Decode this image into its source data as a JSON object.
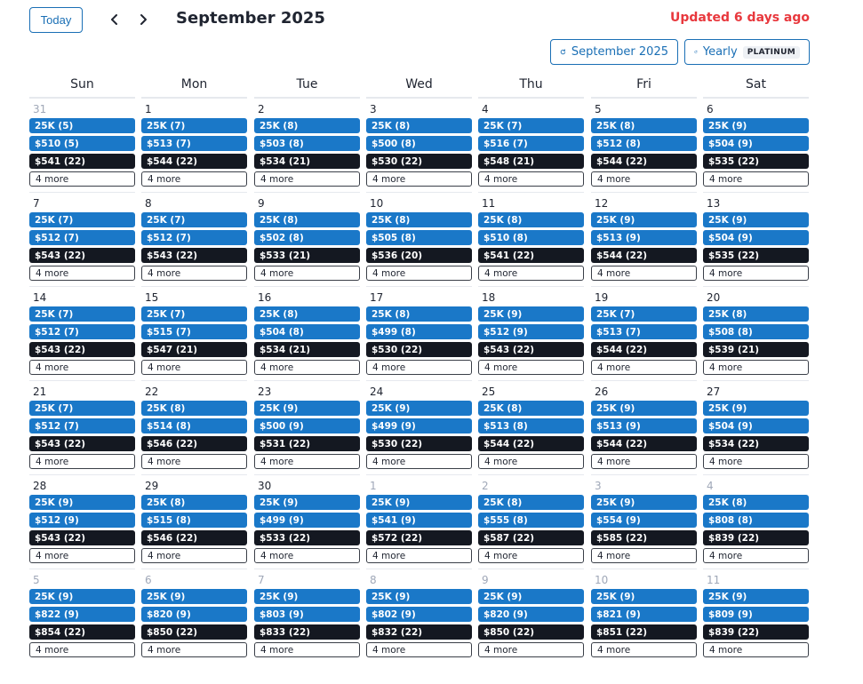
{
  "header": {
    "today_label": "Today",
    "month_title": "September 2025",
    "updated_text": "Updated 6 days ago",
    "month_filter_label": "September 2025",
    "yearly_filter_label": "Yearly",
    "plan_badge": "PLATINUM"
  },
  "colors": {
    "accent": "#1a78c8",
    "dark_event": "#141821",
    "alert": "#e8383d"
  },
  "weekdays": [
    "Sun",
    "Mon",
    "Tue",
    "Wed",
    "Thu",
    "Fri",
    "Sat"
  ],
  "more_label": "4 more",
  "weeks": [
    [
      {
        "day": "31",
        "muted": true,
        "events": [
          "25K (5)",
          "$510 (5)",
          "$541 (22)"
        ]
      },
      {
        "day": "1",
        "muted": false,
        "events": [
          "25K (7)",
          "$513 (7)",
          "$544 (22)"
        ]
      },
      {
        "day": "2",
        "muted": false,
        "events": [
          "25K (8)",
          "$503 (8)",
          "$534 (21)"
        ]
      },
      {
        "day": "3",
        "muted": false,
        "events": [
          "25K (8)",
          "$500 (8)",
          "$530 (22)"
        ]
      },
      {
        "day": "4",
        "muted": false,
        "events": [
          "25K (7)",
          "$516 (7)",
          "$548 (21)"
        ]
      },
      {
        "day": "5",
        "muted": false,
        "events": [
          "25K (8)",
          "$512 (8)",
          "$544 (22)"
        ]
      },
      {
        "day": "6",
        "muted": false,
        "events": [
          "25K (9)",
          "$504 (9)",
          "$535 (22)"
        ]
      }
    ],
    [
      {
        "day": "7",
        "muted": false,
        "events": [
          "25K (7)",
          "$512 (7)",
          "$543 (22)"
        ]
      },
      {
        "day": "8",
        "muted": false,
        "events": [
          "25K (7)",
          "$512 (7)",
          "$543 (22)"
        ]
      },
      {
        "day": "9",
        "muted": false,
        "events": [
          "25K (8)",
          "$502 (8)",
          "$533 (21)"
        ]
      },
      {
        "day": "10",
        "muted": false,
        "events": [
          "25K (8)",
          "$505 (8)",
          "$536 (20)"
        ]
      },
      {
        "day": "11",
        "muted": false,
        "events": [
          "25K (8)",
          "$510 (8)",
          "$541 (22)"
        ]
      },
      {
        "day": "12",
        "muted": false,
        "events": [
          "25K (9)",
          "$513 (9)",
          "$544 (22)"
        ]
      },
      {
        "day": "13",
        "muted": false,
        "events": [
          "25K (9)",
          "$504 (9)",
          "$535 (22)"
        ]
      }
    ],
    [
      {
        "day": "14",
        "muted": false,
        "events": [
          "25K (7)",
          "$512 (7)",
          "$543 (22)"
        ]
      },
      {
        "day": "15",
        "muted": false,
        "events": [
          "25K (7)",
          "$515 (7)",
          "$547 (21)"
        ]
      },
      {
        "day": "16",
        "muted": false,
        "events": [
          "25K (8)",
          "$504 (8)",
          "$534 (21)"
        ]
      },
      {
        "day": "17",
        "muted": false,
        "events": [
          "25K (8)",
          "$499 (8)",
          "$530 (22)"
        ]
      },
      {
        "day": "18",
        "muted": false,
        "events": [
          "25K (9)",
          "$512 (9)",
          "$543 (22)"
        ]
      },
      {
        "day": "19",
        "muted": false,
        "events": [
          "25K (7)",
          "$513 (7)",
          "$544 (22)"
        ]
      },
      {
        "day": "20",
        "muted": false,
        "events": [
          "25K (8)",
          "$508 (8)",
          "$539 (21)"
        ]
      }
    ],
    [
      {
        "day": "21",
        "muted": false,
        "events": [
          "25K (7)",
          "$512 (7)",
          "$543 (22)"
        ]
      },
      {
        "day": "22",
        "muted": false,
        "events": [
          "25K (8)",
          "$514 (8)",
          "$546 (22)"
        ]
      },
      {
        "day": "23",
        "muted": false,
        "events": [
          "25K (9)",
          "$500 (9)",
          "$531 (22)"
        ]
      },
      {
        "day": "24",
        "muted": false,
        "events": [
          "25K (9)",
          "$499 (9)",
          "$530 (22)"
        ]
      },
      {
        "day": "25",
        "muted": false,
        "events": [
          "25K (8)",
          "$513 (8)",
          "$544 (22)"
        ]
      },
      {
        "day": "26",
        "muted": false,
        "events": [
          "25K (9)",
          "$513 (9)",
          "$544 (22)"
        ]
      },
      {
        "day": "27",
        "muted": false,
        "events": [
          "25K (9)",
          "$504 (9)",
          "$534 (22)"
        ]
      }
    ],
    [
      {
        "day": "28",
        "muted": false,
        "events": [
          "25K (9)",
          "$512 (9)",
          "$543 (22)"
        ]
      },
      {
        "day": "29",
        "muted": false,
        "events": [
          "25K (8)",
          "$515 (8)",
          "$546 (22)"
        ]
      },
      {
        "day": "30",
        "muted": false,
        "events": [
          "25K (9)",
          "$499 (9)",
          "$533 (22)"
        ]
      },
      {
        "day": "1",
        "muted": true,
        "events": [
          "25K (9)",
          "$541 (9)",
          "$572 (22)"
        ]
      },
      {
        "day": "2",
        "muted": true,
        "events": [
          "25K (8)",
          "$555 (8)",
          "$587 (22)"
        ]
      },
      {
        "day": "3",
        "muted": true,
        "events": [
          "25K (9)",
          "$554 (9)",
          "$585 (22)"
        ]
      },
      {
        "day": "4",
        "muted": true,
        "events": [
          "25K (8)",
          "$808 (8)",
          "$839 (22)"
        ]
      }
    ],
    [
      {
        "day": "5",
        "muted": true,
        "events": [
          "25K (9)",
          "$822 (9)",
          "$854 (22)"
        ]
      },
      {
        "day": "6",
        "muted": true,
        "events": [
          "25K (9)",
          "$820 (9)",
          "$850 (22)"
        ]
      },
      {
        "day": "7",
        "muted": true,
        "events": [
          "25K (9)",
          "$803 (9)",
          "$833 (22)"
        ]
      },
      {
        "day": "8",
        "muted": true,
        "events": [
          "25K (9)",
          "$802 (9)",
          "$832 (22)"
        ]
      },
      {
        "day": "9",
        "muted": true,
        "events": [
          "25K (9)",
          "$820 (9)",
          "$850 (22)"
        ]
      },
      {
        "day": "10",
        "muted": true,
        "events": [
          "25K (9)",
          "$821 (9)",
          "$851 (22)"
        ]
      },
      {
        "day": "11",
        "muted": true,
        "events": [
          "25K (9)",
          "$809 (9)",
          "$839 (22)"
        ]
      }
    ]
  ]
}
